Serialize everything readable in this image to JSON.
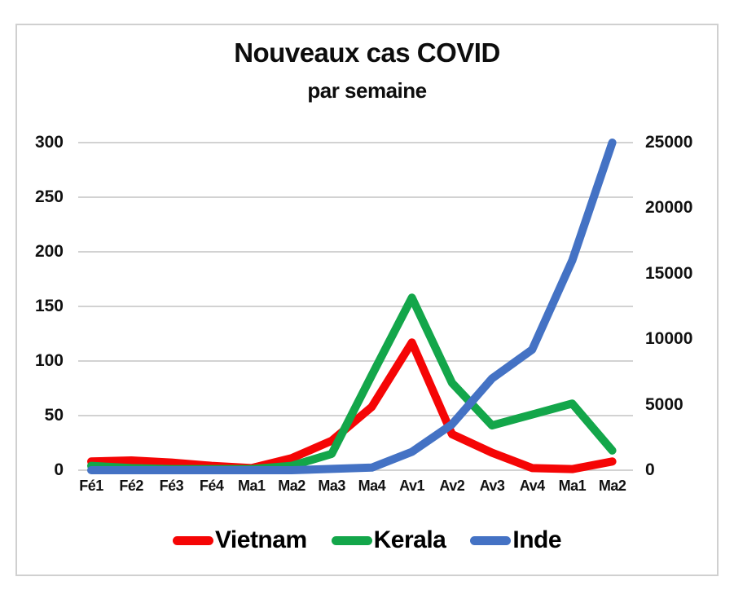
{
  "title": "Nouveaux cas COVID",
  "subtitle": "par semaine",
  "chart_data": {
    "type": "line",
    "categories": [
      "Fé1",
      "Fé2",
      "Fé3",
      "Fé4",
      "Ma1",
      "Ma2",
      "Ma3",
      "Ma4",
      "Av1",
      "Av2",
      "Av3",
      "Av4",
      "Ma1",
      "Ma2"
    ],
    "series": [
      {
        "name": "Vietnam",
        "axis": "left",
        "color": "#f50505",
        "values": [
          8,
          9,
          7,
          4,
          2,
          11,
          27,
          58,
          117,
          33,
          16,
          2,
          1,
          8
        ]
      },
      {
        "name": "Kerala",
        "axis": "left",
        "color": "#13a64a",
        "values": [
          4,
          2,
          1,
          1,
          1,
          4,
          15,
          87,
          158,
          80,
          41,
          51,
          61,
          18
        ]
      },
      {
        "name": "Inde",
        "axis": "right",
        "color": "#4472c4",
        "values": [
          0,
          0,
          0,
          0,
          0,
          0,
          100,
          200,
          1400,
          3500,
          7000,
          9200,
          16000,
          25000
        ]
      }
    ],
    "left_axis": {
      "ticks": [
        0,
        50,
        100,
        150,
        200,
        250,
        300
      ],
      "range": [
        0,
        300
      ]
    },
    "right_axis": {
      "ticks": [
        0,
        5000,
        10000,
        15000,
        20000,
        25000
      ],
      "range": [
        0,
        25000
      ]
    },
    "grid": true,
    "legend_position": "bottom",
    "colors": {
      "grid": "#d2d2d2",
      "frame": "#d0d0d0",
      "text": "#111111",
      "background": "#ffffff"
    }
  },
  "legend": {
    "items": [
      {
        "label": "Vietnam",
        "color": "#f50505"
      },
      {
        "label": "Kerala",
        "color": "#13a64a"
      },
      {
        "label": "Inde",
        "color": "#4472c4"
      }
    ]
  }
}
